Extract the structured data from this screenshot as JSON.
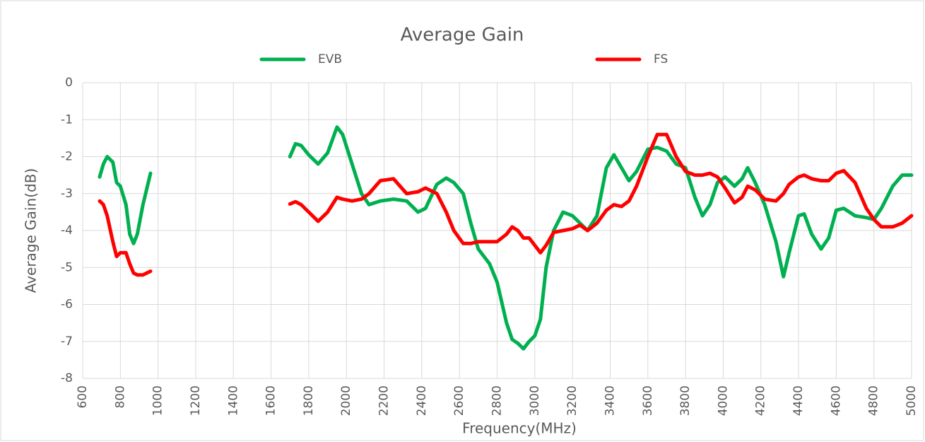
{
  "chart_data": {
    "type": "line",
    "title": "Average Gain",
    "x_label": "Frequency(MHz)",
    "y_label": "Average Gain(dB)",
    "x": [
      690,
      710,
      730,
      760,
      780,
      800,
      830,
      850,
      870,
      890,
      920,
      960,
      null,
      1700,
      1730,
      1760,
      1800,
      1850,
      1900,
      1950,
      1980,
      2030,
      2080,
      2120,
      2180,
      2250,
      2320,
      2380,
      2420,
      2480,
      2530,
      2570,
      2620,
      2660,
      2700,
      2760,
      2800,
      2850,
      2880,
      2910,
      2940,
      2970,
      3000,
      3030,
      3060,
      3100,
      3150,
      3200,
      3240,
      3280,
      3330,
      3380,
      3420,
      3460,
      3500,
      3540,
      3600,
      3650,
      3700,
      3750,
      3800,
      3850,
      3890,
      3930,
      3970,
      4010,
      4060,
      4100,
      4130,
      4170,
      4220,
      4280,
      4320,
      4350,
      4400,
      4430,
      4470,
      4520,
      4560,
      4600,
      4640,
      4700,
      4760,
      4800,
      4840,
      4900,
      4950,
      5000
    ],
    "series": [
      {
        "name": "EVB",
        "color": "#00b050",
        "values": [
          -2.55,
          -2.2,
          -2.0,
          -2.15,
          -2.7,
          -2.8,
          -3.3,
          -4.1,
          -4.35,
          -4.1,
          -3.3,
          -2.45,
          null,
          -2.0,
          -1.65,
          -1.7,
          -1.95,
          -2.2,
          -1.9,
          -1.2,
          -1.4,
          -2.2,
          -3.0,
          -3.3,
          -3.2,
          -3.15,
          -3.2,
          -3.5,
          -3.4,
          -2.75,
          -2.58,
          -2.7,
          -3.0,
          -3.8,
          -4.5,
          -4.9,
          -5.4,
          -6.5,
          -6.95,
          -7.05,
          -7.2,
          -7.0,
          -6.85,
          -6.4,
          -5.0,
          -4.0,
          -3.5,
          -3.6,
          -3.8,
          -4.0,
          -3.6,
          -2.3,
          -1.95,
          -2.3,
          -2.65,
          -2.4,
          -1.8,
          -1.75,
          -1.85,
          -2.2,
          -2.3,
          -3.1,
          -3.6,
          -3.3,
          -2.7,
          -2.55,
          -2.8,
          -2.6,
          -2.3,
          -2.7,
          -3.3,
          -4.3,
          -5.25,
          -4.6,
          -3.6,
          -3.55,
          -4.1,
          -4.5,
          -4.2,
          -3.45,
          -3.4,
          -3.6,
          -3.65,
          -3.7,
          -3.4,
          -2.8,
          -2.5,
          -2.5
        ]
      },
      {
        "name": "FS",
        "color": "#ff0000",
        "values": [
          -3.2,
          -3.3,
          -3.6,
          -4.3,
          -4.7,
          -4.6,
          -4.6,
          -4.9,
          -5.15,
          -5.2,
          -5.2,
          -5.1,
          null,
          -3.28,
          -3.22,
          -3.3,
          -3.5,
          -3.75,
          -3.5,
          -3.1,
          -3.15,
          -3.2,
          -3.15,
          -3.0,
          -2.65,
          -2.6,
          -3.0,
          -2.95,
          -2.85,
          -3.0,
          -3.5,
          -4.0,
          -4.35,
          -4.35,
          -4.3,
          -4.3,
          -4.3,
          -4.1,
          -3.9,
          -4.0,
          -4.2,
          -4.2,
          -4.4,
          -4.6,
          -4.4,
          -4.05,
          -4.0,
          -3.95,
          -3.85,
          -4.0,
          -3.8,
          -3.45,
          -3.3,
          -3.35,
          -3.2,
          -2.8,
          -2.0,
          -1.4,
          -1.4,
          -2.0,
          -2.4,
          -2.5,
          -2.5,
          -2.45,
          -2.55,
          -2.85,
          -3.25,
          -3.1,
          -2.8,
          -2.9,
          -3.15,
          -3.2,
          -3.0,
          -2.75,
          -2.55,
          -2.5,
          -2.6,
          -2.65,
          -2.65,
          -2.45,
          -2.38,
          -2.7,
          -3.4,
          -3.7,
          -3.9,
          -3.9,
          -3.8,
          -3.6
        ]
      }
    ],
    "xlim": [
      600,
      5000
    ],
    "xticks": [
      600,
      800,
      1000,
      1200,
      1400,
      1600,
      1800,
      2000,
      2200,
      2400,
      2600,
      2800,
      3000,
      3200,
      3400,
      3600,
      3800,
      4000,
      4200,
      4400,
      4600,
      4800,
      5000
    ],
    "ylim": [
      -8,
      0
    ],
    "yticks": [
      0,
      -1,
      -2,
      -3,
      -4,
      -5,
      -6,
      -7,
      -8
    ],
    "grid": true,
    "legend": "top"
  }
}
